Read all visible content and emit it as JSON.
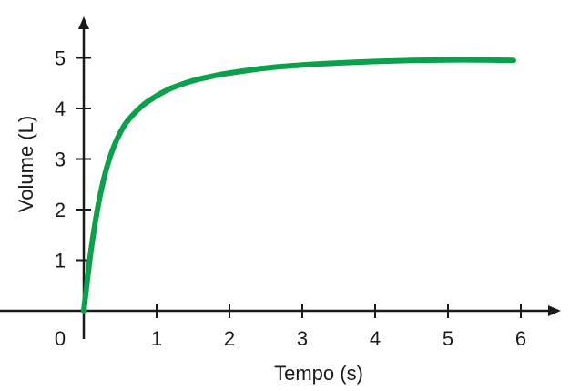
{
  "chart_data": {
    "type": "line",
    "title": "",
    "xlabel": "Tempo (s)",
    "ylabel": "Volume (L)",
    "xlim": [
      0,
      6.6
    ],
    "ylim": [
      0,
      5.6
    ],
    "origin_label": "0",
    "x_ticks": [
      {
        "value": 1,
        "label": "1"
      },
      {
        "value": 2,
        "label": "2"
      },
      {
        "value": 3,
        "label": "3"
      },
      {
        "value": 4,
        "label": "4"
      },
      {
        "value": 5,
        "label": "5"
      },
      {
        "value": 6,
        "label": "6"
      }
    ],
    "y_ticks": [
      {
        "value": 1,
        "label": "1"
      },
      {
        "value": 2,
        "label": "2"
      },
      {
        "value": 3,
        "label": "3"
      },
      {
        "value": 4,
        "label": "4"
      },
      {
        "value": 5,
        "label": "5"
      }
    ],
    "grid": false,
    "series": [
      {
        "color": "#0aa04c",
        "x": [
          0,
          0.1,
          0.2,
          0.3,
          0.4,
          0.5,
          0.6,
          0.8,
          1.0,
          1.2,
          1.5,
          1.8,
          2.0,
          2.5,
          3.0,
          3.5,
          4.0,
          4.5,
          5.0,
          5.5,
          5.9
        ],
        "y": [
          0,
          1.2,
          2.1,
          2.75,
          3.2,
          3.52,
          3.75,
          4.05,
          4.25,
          4.4,
          4.55,
          4.65,
          4.7,
          4.8,
          4.86,
          4.9,
          4.93,
          4.95,
          4.96,
          4.96,
          4.95
        ]
      }
    ]
  }
}
